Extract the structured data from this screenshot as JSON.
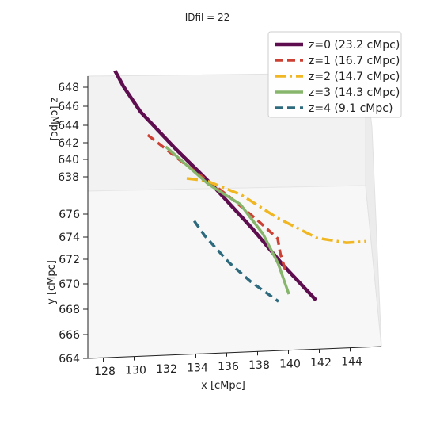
{
  "chart_data": {
    "type": "line",
    "title": "IDfil = 22",
    "projection": "3d",
    "xlabel": "x [cMpc]",
    "ylabel": "y [cMpc]",
    "zlabel": "z [cMpc]",
    "x_ticks": [
      "128",
      "130",
      "132",
      "134",
      "136",
      "138",
      "140",
      "142",
      "144"
    ],
    "y_ticks": [
      "664",
      "666",
      "668",
      "670",
      "672",
      "674",
      "676"
    ],
    "z_ticks": [
      "638",
      "640",
      "642",
      "644",
      "646",
      "648"
    ],
    "xlim": [
      126.5,
      145
    ],
    "ylim": [
      664,
      677
    ],
    "zlim": [
      637,
      649
    ],
    "legend_position": "top-right",
    "grid": false,
    "series": [
      {
        "name": "z=0 (23.2 cMpc)",
        "color": "#5e0e4f",
        "linestyle": "solid",
        "points": [
          [
            127.0,
            676.2,
            648.0
          ],
          [
            127.6,
            675.9,
            646.9
          ],
          [
            128.8,
            675.2,
            645.4
          ],
          [
            131.2,
            674.1,
            643.3
          ],
          [
            134.0,
            672.6,
            641.4
          ],
          [
            136.7,
            670.7,
            639.9
          ],
          [
            139.0,
            668.7,
            638.9
          ],
          [
            141.4,
            666.7,
            638.1
          ]
        ]
      },
      {
        "name": "z=1 (16.7 cMpc)",
        "color": "#cc4133",
        "linestyle": "dashed",
        "points": [
          [
            129.3,
            675.0,
            643.5
          ],
          [
            131.8,
            673.8,
            642.3
          ],
          [
            134.9,
            672.3,
            641.0
          ],
          [
            136.9,
            671.2,
            640.1
          ],
          [
            138.4,
            670.3,
            639.4
          ],
          [
            138.7,
            669.4,
            639.1
          ],
          [
            139.2,
            668.3,
            638.9
          ]
        ]
      },
      {
        "name": "z=2 (14.7 cMpc)",
        "color": "#f0b723",
        "linestyle": "dashdot",
        "points": [
          [
            131.9,
            674.5,
            640.0
          ],
          [
            133.2,
            674.2,
            640.1
          ],
          [
            135.6,
            673.3,
            639.8
          ],
          [
            138.2,
            671.5,
            639.8
          ],
          [
            141.0,
            669.9,
            639.8
          ],
          [
            143.0,
            669.3,
            640.0
          ],
          [
            144.3,
            669.1,
            640.3
          ]
        ]
      },
      {
        "name": "z=3 (14.3 cMpc)",
        "color": "#86b56b",
        "linestyle": "solid",
        "points": [
          [
            130.5,
            674.8,
            642.6
          ],
          [
            133.5,
            673.2,
            641.0
          ],
          [
            135.7,
            672.2,
            640.3
          ],
          [
            137.4,
            670.6,
            639.5
          ],
          [
            138.6,
            669.1,
            638.6
          ],
          [
            139.5,
            667.7,
            637.5
          ]
        ]
      },
      {
        "name": "z=4 (9.1 cMpc)",
        "color": "#2e6a7e",
        "linestyle": "dashed",
        "points": [
          [
            132.8,
            671.6,
            639.7
          ],
          [
            133.6,
            670.8,
            639.3
          ],
          [
            135.4,
            669.1,
            638.9
          ],
          [
            137.0,
            668.0,
            638.4
          ],
          [
            138.9,
            667.2,
            637.5
          ]
        ]
      }
    ]
  }
}
